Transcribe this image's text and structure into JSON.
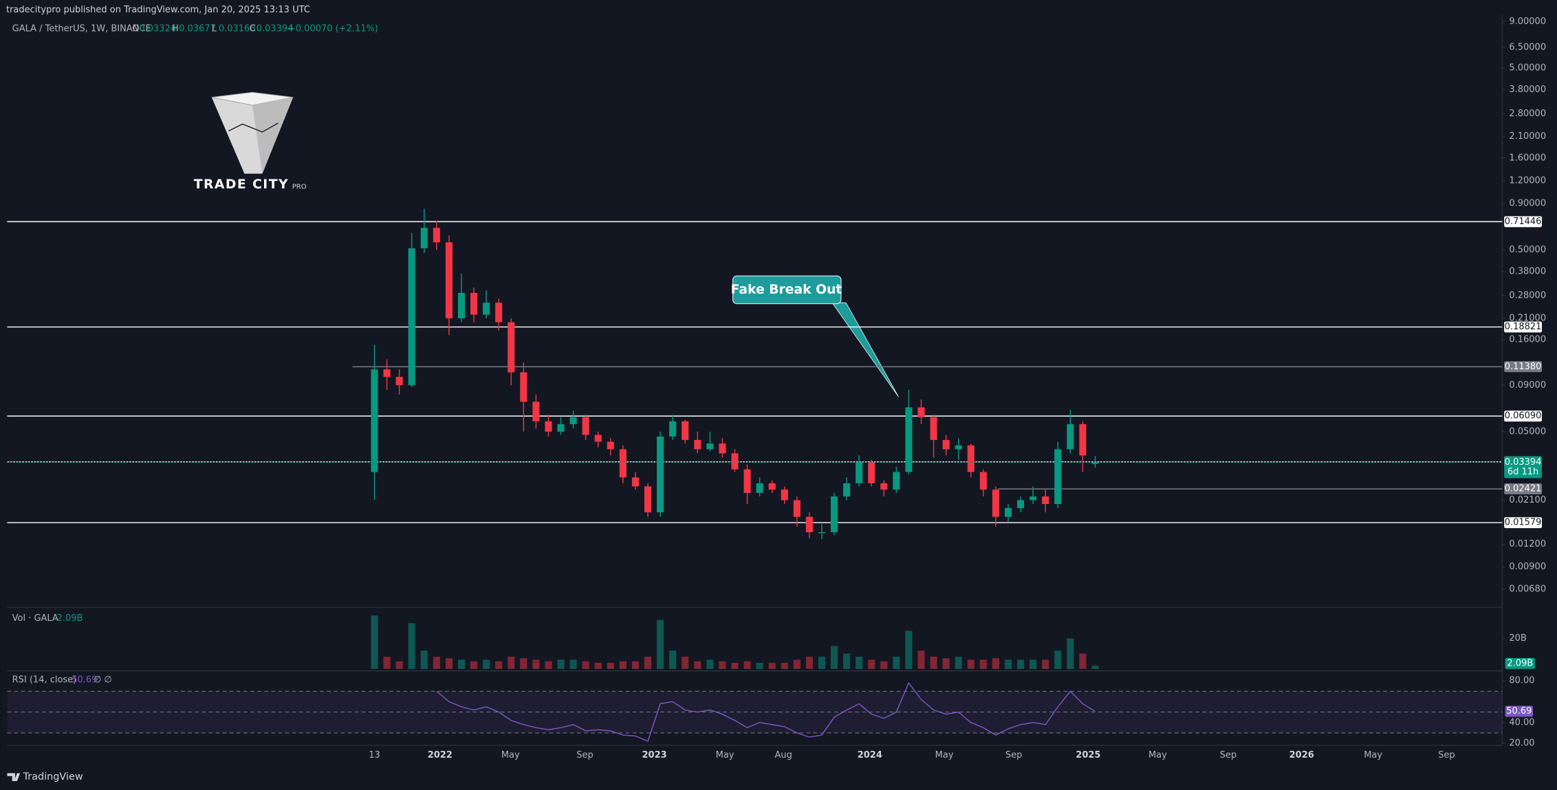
{
  "header": {
    "published": "tradecitypro published on TradingView.com, Jan 20, 2025 13:13 UTC",
    "footer": "TradingView",
    "logo_text": "TRADE CITY",
    "logo_sub": "PRO"
  },
  "chart_data": {
    "type": "candlestick",
    "symbol": "GALA / TetherUS, 1W, BINANCE",
    "ohlc_letters": [
      "O",
      "H",
      "L",
      "C"
    ],
    "change": "+0.00070 (+2.11%)",
    "x_labels": [
      "13",
      "2022",
      "May",
      "Sep",
      "2023",
      "May",
      "Aug",
      "2024",
      "May",
      "Sep",
      "2025",
      "May",
      "Sep",
      "2026",
      "May",
      "Sep"
    ],
    "open": [
      0.03,
      0.11,
      0.1,
      0.09,
      0.51,
      0.66,
      0.55,
      0.21,
      0.29,
      0.22,
      0.256,
      0.2,
      0.106,
      0.073,
      0.057,
      0.05,
      0.055,
      0.06,
      0.048,
      0.044,
      0.04,
      0.028,
      0.025,
      0.018,
      0.047,
      0.057,
      0.045,
      0.04,
      0.043,
      0.038,
      0.031,
      0.023,
      0.026,
      0.024,
      0.021,
      0.017,
      0.014,
      0.014,
      0.022,
      0.026,
      0.034,
      0.026,
      0.024,
      0.03,
      0.068,
      0.06,
      0.045,
      0.04,
      0.042,
      0.03,
      0.024,
      0.017,
      0.019,
      0.021,
      0.022,
      0.02,
      0.04,
      0.055,
      0.03324
    ],
    "high": [
      0.15,
      0.125,
      0.11,
      0.62,
      0.84,
      0.72,
      0.6,
      0.37,
      0.31,
      0.3,
      0.27,
      0.21,
      0.12,
      0.08,
      0.062,
      0.06,
      0.065,
      0.062,
      0.05,
      0.046,
      0.042,
      0.03,
      0.026,
      0.05,
      0.062,
      0.058,
      0.05,
      0.05,
      0.046,
      0.04,
      0.033,
      0.028,
      0.027,
      0.025,
      0.022,
      0.018,
      0.0155,
      0.023,
      0.028,
      0.037,
      0.035,
      0.027,
      0.032,
      0.085,
      0.075,
      0.062,
      0.048,
      0.046,
      0.043,
      0.031,
      0.025,
      0.02,
      0.022,
      0.025,
      0.024,
      0.044,
      0.066,
      0.057,
      0.03677
    ],
    "low": [
      0.021,
      0.085,
      0.08,
      0.088,
      0.48,
      0.5,
      0.17,
      0.2,
      0.2,
      0.21,
      0.18,
      0.09,
      0.05,
      0.052,
      0.047,
      0.048,
      0.052,
      0.045,
      0.041,
      0.037,
      0.026,
      0.024,
      0.017,
      0.017,
      0.045,
      0.043,
      0.038,
      0.039,
      0.036,
      0.03,
      0.02,
      0.022,
      0.023,
      0.02,
      0.015,
      0.013,
      0.0128,
      0.0135,
      0.021,
      0.025,
      0.025,
      0.022,
      0.023,
      0.029,
      0.055,
      0.036,
      0.037,
      0.035,
      0.028,
      0.022,
      0.015,
      0.016,
      0.018,
      0.02,
      0.018,
      0.019,
      0.038,
      0.03,
      0.03168
    ],
    "close": [
      0.11,
      0.1,
      0.09,
      0.51,
      0.66,
      0.55,
      0.21,
      0.29,
      0.22,
      0.256,
      0.2,
      0.106,
      0.073,
      0.057,
      0.05,
      0.055,
      0.06,
      0.048,
      0.044,
      0.04,
      0.028,
      0.025,
      0.018,
      0.047,
      0.057,
      0.045,
      0.04,
      0.043,
      0.038,
      0.031,
      0.023,
      0.026,
      0.024,
      0.021,
      0.017,
      0.014,
      0.014,
      0.022,
      0.026,
      0.034,
      0.026,
      0.024,
      0.03,
      0.068,
      0.06,
      0.045,
      0.04,
      0.042,
      0.03,
      0.024,
      0.017,
      0.019,
      0.021,
      0.022,
      0.02,
      0.04,
      0.055,
      0.037,
      0.03394
    ],
    "up_color": "#089981",
    "down_color": "#f23645",
    "log_scale": true,
    "grid": false,
    "ylim": [
      0.0054,
      9.8
    ],
    "yticks": [
      {
        "value": 9,
        "label": "9.00000"
      },
      {
        "value": 6.5,
        "label": "6.50000"
      },
      {
        "value": 5,
        "label": "5.00000"
      },
      {
        "value": 3.8,
        "label": "3.80000"
      },
      {
        "value": 2.8,
        "label": "2.80000"
      },
      {
        "value": 2.1,
        "label": "2.10000"
      },
      {
        "value": 1.6,
        "label": "1.60000"
      },
      {
        "value": 1.2,
        "label": "1.20000"
      },
      {
        "value": 0.9,
        "label": "0.90000"
      },
      {
        "value": 0.5,
        "label": "0.50000"
      },
      {
        "value": 0.38,
        "label": "0.38000"
      },
      {
        "value": 0.28,
        "label": "0.28000"
      },
      {
        "value": 0.21,
        "label": "0.21000"
      },
      {
        "value": 0.16,
        "label": "0.16000"
      },
      {
        "value": 0.09,
        "label": "0.09000"
      },
      {
        "value": 0.05,
        "label": "0.05000"
      },
      {
        "value": 0.021,
        "label": "0.02100"
      },
      {
        "value": 0.012,
        "label": "0.01200"
      },
      {
        "value": 0.009,
        "label": "0.00900"
      },
      {
        "value": 0.0068,
        "label": "0.00680"
      }
    ],
    "levels": [
      {
        "value": 0.71446,
        "color": "#ffffff"
      },
      {
        "value": 0.18821,
        "color": "#ffffff"
      },
      {
        "value": 0.1138,
        "label": "0.11380",
        "color": "#787b86"
      },
      {
        "value": 0.0609,
        "label": "0.06090",
        "color": "#ffffff"
      },
      {
        "value": 0.03412,
        "color": "#ffffff"
      },
      {
        "value": 0.02421,
        "color": "#787b86"
      },
      {
        "value": 0.01579,
        "color": "#ffffff"
      }
    ],
    "countdown": "6d 11h",
    "annotation": "Fake Break Out",
    "volume": {
      "name": "Vol · GALA",
      "last_label": "2.09B",
      "ylim": [
        0,
        39
      ],
      "yticks": [
        {
          "value": 20,
          "label": "20B"
        }
      ],
      "values": [
        35,
        8,
        5,
        30,
        12,
        8,
        7,
        6,
        5,
        6,
        5,
        8,
        7,
        6,
        5,
        6,
        6,
        5,
        4,
        4,
        5,
        5,
        8,
        32,
        12,
        8,
        5,
        6,
        5,
        4,
        5,
        4,
        4,
        4,
        6,
        8,
        8,
        15,
        10,
        8,
        6,
        5,
        8,
        25,
        12,
        8,
        7,
        8,
        6,
        6,
        7,
        6,
        6,
        6,
        6,
        12,
        20,
        10,
        2.09
      ]
    },
    "rsi": {
      "name": "RSI (14, close)",
      "extra": "∅ ∅",
      "color": "#7e57c2",
      "ylim": [
        19,
        88.6
      ],
      "bands": [
        70,
        50,
        30
      ],
      "yticks": [
        {
          "value": 80,
          "label": "80.00"
        },
        {
          "value": 40,
          "label": "40.00"
        },
        {
          "value": 20,
          "label": "20.00"
        }
      ],
      "values": [
        null,
        null,
        null,
        null,
        null,
        70,
        60,
        55,
        52,
        55,
        50,
        42,
        38,
        35,
        33,
        35,
        38,
        32,
        33,
        32,
        28,
        27,
        22,
        58,
        60,
        52,
        50,
        52,
        48,
        42,
        35,
        40,
        38,
        36,
        30,
        26,
        28,
        45,
        52,
        58,
        48,
        44,
        50,
        78,
        62,
        52,
        48,
        50,
        40,
        35,
        28,
        34,
        38,
        40,
        38,
        55,
        70,
        58,
        50.69
      ]
    }
  }
}
